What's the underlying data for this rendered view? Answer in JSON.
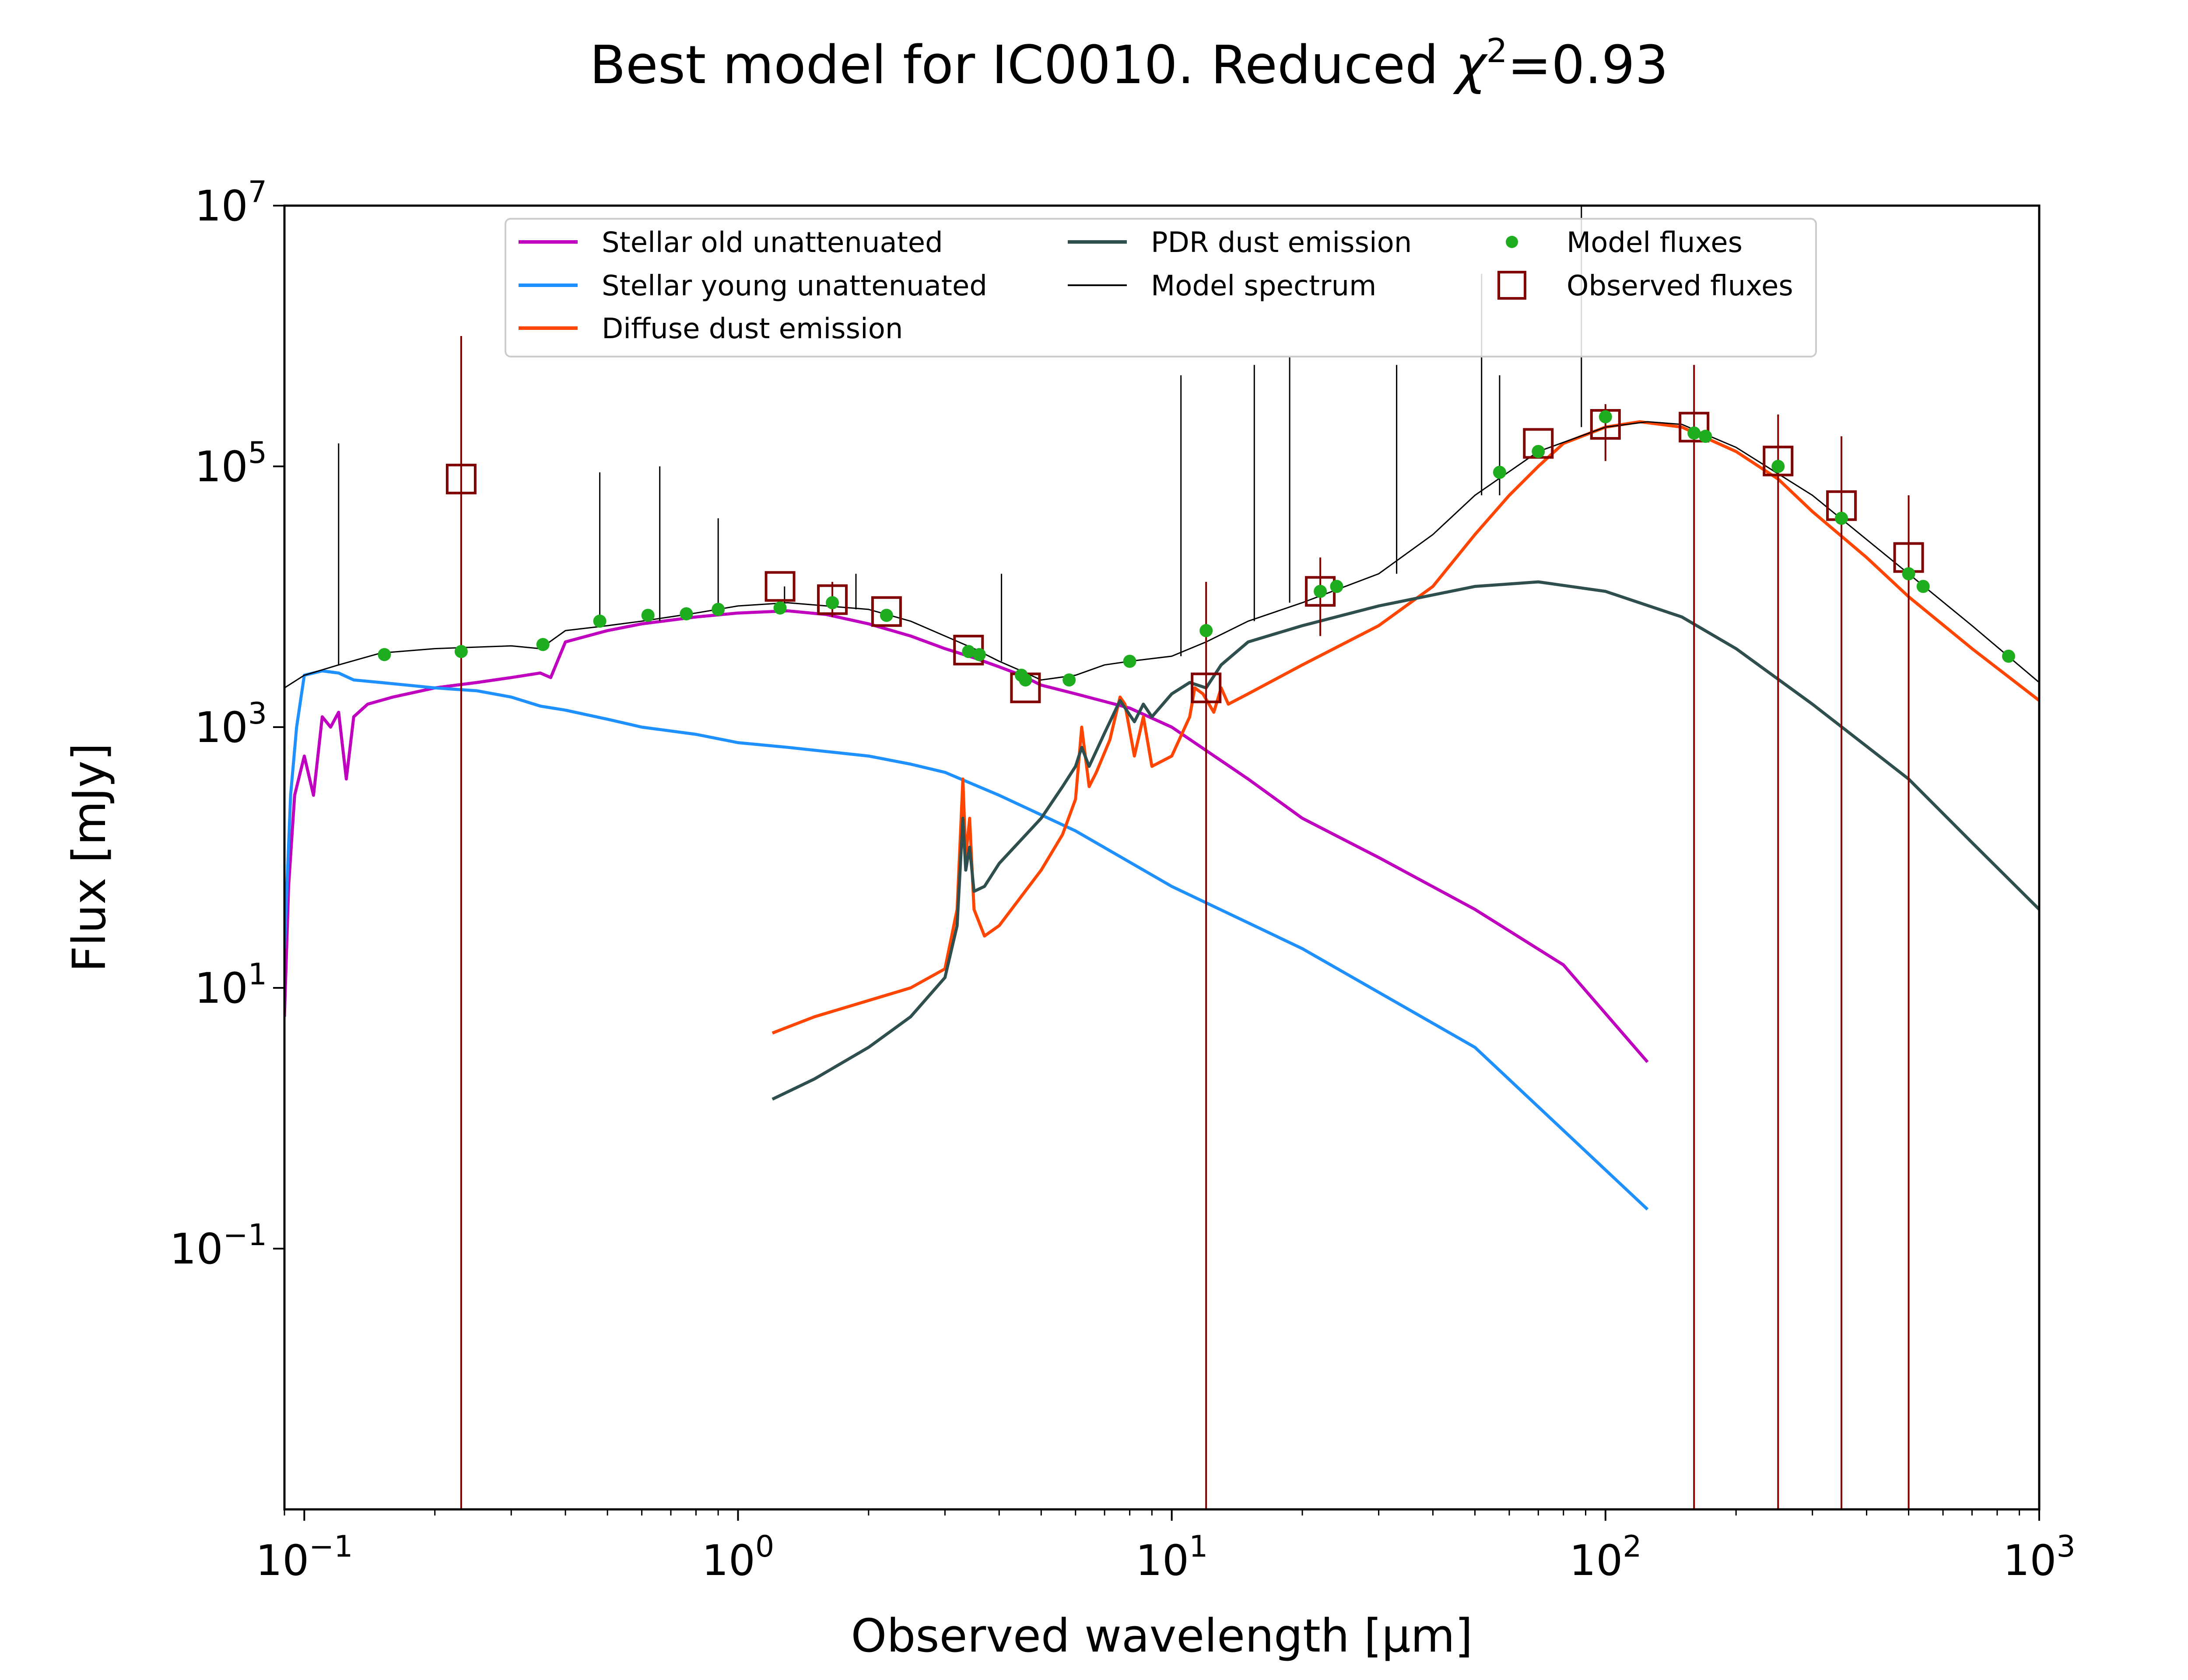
{
  "chart_data": {
    "type": "line",
    "title": "Best model for IC0010. Reduced χ²=0.93",
    "title_parts": {
      "main": "Best model for IC0010. Reduced ",
      "chi": "χ",
      "exp": "2",
      "tail": "=0.93"
    },
    "xlabel": "Observed wavelength [μm]",
    "ylabel": "Flux [mJy]",
    "x_scale": "log",
    "y_scale": "log",
    "xlim": [
      0.09,
      1000
    ],
    "ylim": [
      0.001,
      10000000
    ],
    "x_ticks": [
      {
        "value": 0.1,
        "base": "10",
        "exp": "−1"
      },
      {
        "value": 1,
        "base": "10",
        "exp": "0"
      },
      {
        "value": 10,
        "base": "10",
        "exp": "1"
      },
      {
        "value": 100,
        "base": "10",
        "exp": "2"
      },
      {
        "value": 1000,
        "base": "10",
        "exp": "3"
      }
    ],
    "y_ticks": [
      {
        "value": 0.1,
        "base": "10",
        "exp": "−1"
      },
      {
        "value": 10,
        "base": "10",
        "exp": "1"
      },
      {
        "value": 1000,
        "base": "10",
        "exp": "3"
      },
      {
        "value": 100000,
        "base": "10",
        "exp": "5"
      },
      {
        "value": 10000000,
        "base": "10",
        "exp": "7"
      }
    ],
    "grid": false,
    "legend_position": "upper-center",
    "series": [
      {
        "name": "Stellar old unattenuated",
        "color": "#bf00bf",
        "points": [
          [
            0.09,
            6
          ],
          [
            0.092,
            60
          ],
          [
            0.095,
            300
          ],
          [
            0.1,
            600
          ],
          [
            0.105,
            300
          ],
          [
            0.11,
            1200
          ],
          [
            0.115,
            1000
          ],
          [
            0.12,
            1300
          ],
          [
            0.125,
            400
          ],
          [
            0.13,
            1200
          ],
          [
            0.14,
            1500
          ],
          [
            0.16,
            1700
          ],
          [
            0.2,
            2000
          ],
          [
            0.25,
            2200
          ],
          [
            0.3,
            2400
          ],
          [
            0.35,
            2600
          ],
          [
            0.37,
            2400
          ],
          [
            0.4,
            4500
          ],
          [
            0.5,
            5500
          ],
          [
            0.6,
            6200
          ],
          [
            0.8,
            7000
          ],
          [
            1.0,
            7500
          ],
          [
            1.3,
            7800
          ],
          [
            1.6,
            7300
          ],
          [
            2.0,
            6200
          ],
          [
            2.5,
            5000
          ],
          [
            3.0,
            4000
          ],
          [
            3.5,
            3400
          ],
          [
            4.0,
            2900
          ],
          [
            4.5,
            2500
          ],
          [
            5.0,
            2100
          ],
          [
            6.0,
            1800
          ],
          [
            8.0,
            1400
          ],
          [
            10,
            1000
          ],
          [
            15,
            400
          ],
          [
            20,
            200
          ],
          [
            30,
            100
          ],
          [
            50,
            40
          ],
          [
            80,
            15
          ],
          [
            125,
            2.7
          ]
        ]
      },
      {
        "name": "Stellar young unattenuated",
        "color": "#1e90ff",
        "points": [
          [
            0.09,
            20
          ],
          [
            0.093,
            300
          ],
          [
            0.096,
            1000
          ],
          [
            0.1,
            2500
          ],
          [
            0.11,
            2700
          ],
          [
            0.12,
            2600
          ],
          [
            0.13,
            2300
          ],
          [
            0.15,
            2200
          ],
          [
            0.2,
            2000
          ],
          [
            0.25,
            1900
          ],
          [
            0.3,
            1700
          ],
          [
            0.35,
            1450
          ],
          [
            0.4,
            1350
          ],
          [
            0.5,
            1150
          ],
          [
            0.6,
            1000
          ],
          [
            0.8,
            880
          ],
          [
            1.0,
            760
          ],
          [
            1.3,
            700
          ],
          [
            1.6,
            650
          ],
          [
            2.0,
            600
          ],
          [
            2.5,
            520
          ],
          [
            3.0,
            450
          ],
          [
            4.0,
            300
          ],
          [
            6.0,
            160
          ],
          [
            10,
            60
          ],
          [
            20,
            20
          ],
          [
            50,
            3.5
          ],
          [
            125,
            0.2
          ]
        ]
      },
      {
        "name": "Diffuse dust emission",
        "color": "#ff4500",
        "points": [
          [
            1.2,
            4.5
          ],
          [
            1.5,
            6
          ],
          [
            2.0,
            8
          ],
          [
            2.5,
            10
          ],
          [
            3.0,
            14
          ],
          [
            3.2,
            40
          ],
          [
            3.3,
            400
          ],
          [
            3.35,
            100
          ],
          [
            3.42,
            200
          ],
          [
            3.5,
            40
          ],
          [
            3.7,
            25
          ],
          [
            4.0,
            30
          ],
          [
            5.0,
            80
          ],
          [
            5.6,
            150
          ],
          [
            6.0,
            280
          ],
          [
            6.2,
            1000
          ],
          [
            6.45,
            350
          ],
          [
            6.7,
            450
          ],
          [
            7.2,
            800
          ],
          [
            7.6,
            1700
          ],
          [
            7.8,
            1500
          ],
          [
            8.2,
            600
          ],
          [
            8.6,
            1200
          ],
          [
            9.0,
            500
          ],
          [
            10,
            600
          ],
          [
            11,
            1200
          ],
          [
            11.3,
            2000
          ],
          [
            11.8,
            1800
          ],
          [
            12.5,
            1300
          ],
          [
            13,
            2000
          ],
          [
            13.5,
            1500
          ],
          [
            15,
            1800
          ],
          [
            20,
            3000
          ],
          [
            30,
            6000
          ],
          [
            40,
            12000
          ],
          [
            50,
            30000
          ],
          [
            60,
            60000
          ],
          [
            70,
            100000
          ],
          [
            80,
            150000
          ],
          [
            100,
            200000
          ],
          [
            120,
            220000
          ],
          [
            150,
            200000
          ],
          [
            200,
            130000
          ],
          [
            250,
            80000
          ],
          [
            300,
            45000
          ],
          [
            400,
            20000
          ],
          [
            500,
            10000
          ],
          [
            700,
            4000
          ],
          [
            1000,
            1600
          ]
        ]
      },
      {
        "name": "PDR dust emission",
        "color": "#2f4f4f",
        "points": [
          [
            1.2,
            1.4
          ],
          [
            1.5,
            2
          ],
          [
            2.0,
            3.5
          ],
          [
            2.5,
            6
          ],
          [
            3.0,
            12
          ],
          [
            3.2,
            30
          ],
          [
            3.3,
            200
          ],
          [
            3.35,
            80
          ],
          [
            3.42,
            120
          ],
          [
            3.5,
            55
          ],
          [
            3.7,
            60
          ],
          [
            4.0,
            90
          ],
          [
            5.0,
            200
          ],
          [
            5.6,
            350
          ],
          [
            6.0,
            500
          ],
          [
            6.2,
            700
          ],
          [
            6.45,
            500
          ],
          [
            7.0,
            900
          ],
          [
            7.6,
            1600
          ],
          [
            8.2,
            1100
          ],
          [
            8.6,
            1500
          ],
          [
            9.0,
            1200
          ],
          [
            10,
            1800
          ],
          [
            11,
            2200
          ],
          [
            12,
            2000
          ],
          [
            13,
            3000
          ],
          [
            15,
            4500
          ],
          [
            20,
            6000
          ],
          [
            30,
            8500
          ],
          [
            50,
            12000
          ],
          [
            70,
            13000
          ],
          [
            100,
            11000
          ],
          [
            150,
            7000
          ],
          [
            200,
            4000
          ],
          [
            300,
            1500
          ],
          [
            500,
            400
          ],
          [
            700,
            130
          ],
          [
            1000,
            40
          ]
        ]
      },
      {
        "name": "Model spectrum",
        "color": "#000000",
        "points": [
          [
            0.09,
            2000
          ],
          [
            0.1,
            2500
          ],
          [
            0.12,
            3000
          ],
          [
            0.15,
            3700
          ],
          [
            0.2,
            4000
          ],
          [
            0.3,
            4200
          ],
          [
            0.35,
            4000
          ],
          [
            0.4,
            5500
          ],
          [
            0.5,
            6000
          ],
          [
            0.6,
            6500
          ],
          [
            0.8,
            7500
          ],
          [
            1.0,
            8500
          ],
          [
            1.3,
            9000
          ],
          [
            1.6,
            8500
          ],
          [
            2.0,
            8000
          ],
          [
            2.5,
            6500
          ],
          [
            3.0,
            5000
          ],
          [
            3.5,
            4000
          ],
          [
            4.0,
            3200
          ],
          [
            4.5,
            2700
          ],
          [
            5.0,
            2300
          ],
          [
            6.0,
            2500
          ],
          [
            7.0,
            3000
          ],
          [
            8.0,
            3200
          ],
          [
            10,
            3500
          ],
          [
            12,
            4500
          ],
          [
            15,
            6500
          ],
          [
            20,
            9000
          ],
          [
            30,
            15000
          ],
          [
            40,
            30000
          ],
          [
            50,
            60000
          ],
          [
            70,
            130000
          ],
          [
            100,
            200000
          ],
          [
            125,
            220000
          ],
          [
            150,
            210000
          ],
          [
            200,
            140000
          ],
          [
            300,
            60000
          ],
          [
            500,
            15000
          ],
          [
            700,
            6000
          ],
          [
            1000,
            2200
          ]
        ],
        "lines": [
          [
            0.12,
            150000
          ],
          [
            0.48,
            90000
          ],
          [
            0.66,
            100000
          ],
          [
            0.9,
            40000
          ],
          [
            1.28,
            12000
          ],
          [
            1.87,
            15000
          ],
          [
            4.05,
            15000
          ],
          [
            10.5,
            500000
          ],
          [
            15.5,
            600000
          ],
          [
            18.7,
            700000
          ],
          [
            33,
            600000
          ],
          [
            51.8,
            3000000
          ],
          [
            57,
            500000
          ],
          [
            88,
            10000000
          ]
        ]
      }
    ],
    "model_fluxes": {
      "name": "Model fluxes",
      "color": "#1ead1e",
      "points": [
        [
          0.153,
          3600
        ],
        [
          0.23,
          3800
        ],
        [
          0.355,
          4300
        ],
        [
          0.48,
          6500
        ],
        [
          0.62,
          7200
        ],
        [
          0.76,
          7400
        ],
        [
          0.9,
          8000
        ],
        [
          1.25,
          8200
        ],
        [
          1.65,
          9000
        ],
        [
          2.2,
          7200
        ],
        [
          3.4,
          3800
        ],
        [
          3.6,
          3600
        ],
        [
          4.5,
          2500
        ],
        [
          4.6,
          2300
        ],
        [
          5.8,
          2300
        ],
        [
          8.0,
          3200
        ],
        [
          12,
          5500
        ],
        [
          22,
          11000
        ],
        [
          24,
          12000
        ],
        [
          57,
          90000
        ],
        [
          70,
          130000
        ],
        [
          100,
          240000
        ],
        [
          160,
          180000
        ],
        [
          170,
          170000
        ],
        [
          250,
          100000
        ],
        [
          350,
          40000
        ],
        [
          500,
          15000
        ],
        [
          540,
          12000
        ],
        [
          850,
          3500
        ]
      ]
    },
    "observed_fluxes": {
      "name": "Observed fluxes",
      "color": "#800000",
      "points": [
        [
          0.23,
          80000
        ],
        [
          1.25,
          12000
        ],
        [
          1.65,
          9500
        ],
        [
          2.2,
          7700
        ],
        [
          3.4,
          3900
        ],
        [
          4.6,
          2000
        ],
        [
          12,
          2000
        ],
        [
          22,
          11000
        ],
        [
          70,
          150000
        ],
        [
          100,
          210000
        ],
        [
          160,
          200000
        ],
        [
          250,
          110000
        ],
        [
          350,
          50000
        ],
        [
          500,
          20000
        ]
      ],
      "errorbars": [
        [
          0.23,
          0.001,
          1000000
        ],
        [
          1.65,
          7000,
          13000
        ],
        [
          12,
          0.001,
          13000
        ],
        [
          22,
          5000,
          20000
        ],
        [
          100,
          110000,
          300000
        ],
        [
          160,
          0.001,
          600000
        ],
        [
          250,
          0.001,
          250000
        ],
        [
          350,
          0.001,
          170000
        ],
        [
          500,
          0.001,
          60000
        ]
      ]
    }
  }
}
